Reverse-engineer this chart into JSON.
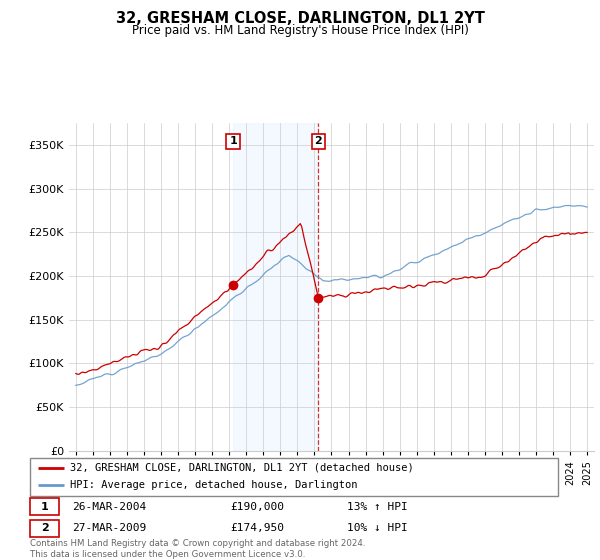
{
  "title": "32, GRESHAM CLOSE, DARLINGTON, DL1 2YT",
  "subtitle": "Price paid vs. HM Land Registry's House Price Index (HPI)",
  "legend_entry1": "32, GRESHAM CLOSE, DARLINGTON, DL1 2YT (detached house)",
  "legend_entry2": "HPI: Average price, detached house, Darlington",
  "transaction1_date": "26-MAR-2004",
  "transaction1_price": "£190,000",
  "transaction1_hpi": "13% ↑ HPI",
  "transaction1_year": 2004.23,
  "transaction1_value": 190000,
  "transaction2_date": "27-MAR-2009",
  "transaction2_price": "£174,950",
  "transaction2_hpi": "10% ↓ HPI",
  "transaction2_year": 2009.23,
  "transaction2_value": 174950,
  "red_color": "#cc0000",
  "blue_color": "#6699cc",
  "shade_color": "#ddeeff",
  "bg_color": "#f0f4f8",
  "footer": "Contains HM Land Registry data © Crown copyright and database right 2024.\nThis data is licensed under the Open Government Licence v3.0.",
  "ylim": [
    0,
    375000
  ],
  "yticks": [
    0,
    50000,
    100000,
    150000,
    200000,
    250000,
    300000,
    350000
  ],
  "ytick_labels": [
    "£0",
    "£50K",
    "£100K",
    "£150K",
    "£200K",
    "£250K",
    "£300K",
    "£350K"
  ],
  "year_start": 1995,
  "year_end": 2025
}
